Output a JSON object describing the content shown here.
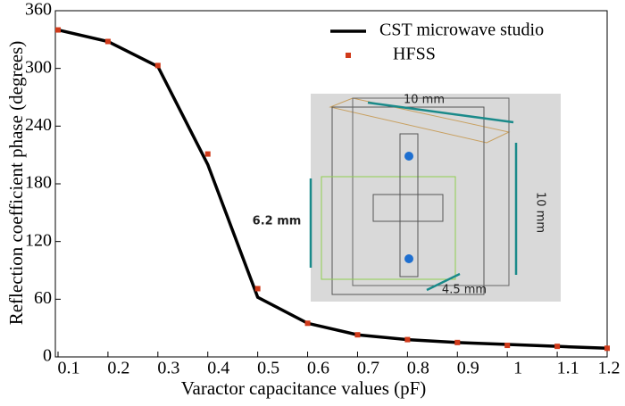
{
  "chart_data": {
    "type": "line",
    "xlabel": "Varactor capacitance values (pF)",
    "ylabel": "Reflection coefficient phase (degrees)",
    "x": [
      0.1,
      0.2,
      0.3,
      0.4,
      0.5,
      0.6,
      0.7,
      0.8,
      0.9,
      1.0,
      1.1,
      1.2
    ],
    "series": [
      {
        "name": "CST microwave studio",
        "color": "#000000",
        "mode": "line",
        "values": [
          340,
          328,
          302,
          200,
          62,
          35,
          23,
          18,
          15,
          13,
          11,
          9
        ]
      },
      {
        "name": "HFSS",
        "color": "#d03a1a",
        "mode": "markers",
        "values": [
          340,
          328,
          303,
          211,
          71,
          35,
          23,
          18,
          15,
          12,
          11,
          9
        ]
      }
    ],
    "xlim": [
      0.1,
      1.2
    ],
    "xticks": [
      0.1,
      0.2,
      0.3,
      0.4,
      0.5,
      0.6,
      0.7,
      0.8,
      0.9,
      1,
      1.1,
      1.2
    ],
    "ylim": [
      0,
      360
    ],
    "yticks": [
      0,
      60,
      120,
      180,
      240,
      300,
      360
    ],
    "legend": "upper right",
    "inset_labels": [
      "10 mm",
      "10 mm",
      "6.2 mm",
      "4.5 mm"
    ]
  }
}
